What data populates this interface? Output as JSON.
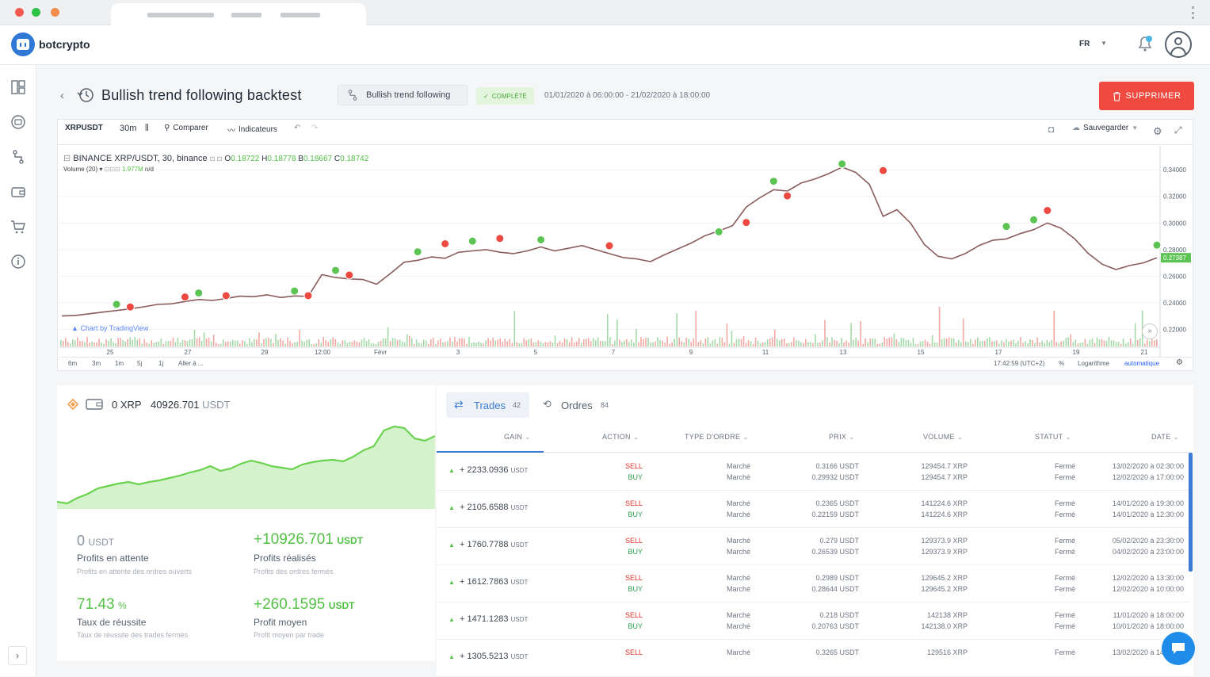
{
  "app": {
    "name": "botcrypto",
    "lang": "FR"
  },
  "page": {
    "title": "Bullish trend following backtest",
    "strategy": "Bullish trend following",
    "status": "COMPLÉTÉ",
    "range": "01/01/2020 à 06:00:00 - 21/02/2020 à 18:00:00",
    "delete_label": "SUPPRIMER"
  },
  "toolbar": {
    "symbol": "XRPUSDT",
    "interval": "30m",
    "compare": "Comparer",
    "indicators": "Indicateurs",
    "save": "Sauvegarder"
  },
  "legend": {
    "pair": "BINANCE XRP/USDT, 30, binance",
    "o_label": "O",
    "o": "0.18722",
    "h_label": "H",
    "h": "0.18778",
    "b_label": "B",
    "b": "0.18667",
    "c_label": "C",
    "c": "0.18742",
    "volume_label": "Volume (20)",
    "volume_value": "1.977M",
    "volume_na": "n/d",
    "watermark": "Chart by TradingView"
  },
  "chart_data": {
    "type": "line",
    "title": "BINANCE XRP/USDT, 30, binance",
    "x_ticks": [
      "25",
      "27",
      "29",
      "12:00",
      "Févr",
      "3",
      "5",
      "7",
      "9",
      "11",
      "13",
      "15",
      "17",
      "19",
      "21"
    ],
    "y_ticks": [
      "0.34000",
      "0.32000",
      "0.30000",
      "0.28000",
      "0.26000",
      "0.24000",
      "0.22000"
    ],
    "ylim": [
      0.212,
      0.352
    ],
    "last_price": "0.27387",
    "x": [
      0,
      1,
      2,
      3,
      4,
      5,
      6,
      7,
      8,
      9,
      10,
      11,
      12,
      13,
      14,
      15,
      16,
      17,
      18,
      19,
      20,
      21,
      22,
      23,
      24,
      25,
      26,
      27,
      28,
      29,
      30,
      31,
      32,
      33,
      34,
      35,
      36,
      37,
      38,
      39,
      40,
      41,
      42,
      43,
      44,
      45,
      46,
      47,
      48,
      49,
      50,
      51,
      52,
      53,
      54,
      55,
      56,
      57,
      58,
      59,
      60,
      61,
      62,
      63,
      64,
      65,
      66,
      67,
      68,
      69,
      70,
      71,
      72,
      73,
      74,
      75,
      76,
      77,
      78,
      79,
      80
    ],
    "y": [
      0.2301,
      0.2305,
      0.2318,
      0.233,
      0.2342,
      0.2355,
      0.237,
      0.2388,
      0.2392,
      0.241,
      0.2425,
      0.2418,
      0.2432,
      0.245,
      0.2446,
      0.246,
      0.244,
      0.2452,
      0.2448,
      0.2612,
      0.259,
      0.258,
      0.2575,
      0.254,
      0.262,
      0.2705,
      0.272,
      0.2745,
      0.2735,
      0.278,
      0.279,
      0.28,
      0.278,
      0.277,
      0.279,
      0.282,
      0.279,
      0.281,
      0.283,
      0.28,
      0.277,
      0.274,
      0.273,
      0.271,
      0.276,
      0.2805,
      0.285,
      0.2905,
      0.294,
      0.298,
      0.312,
      0.319,
      0.325,
      0.324,
      0.33,
      0.333,
      0.337,
      0.342,
      0.338,
      0.329,
      0.305,
      0.31,
      0.3,
      0.284,
      0.275,
      0.273,
      0.277,
      0.283,
      0.287,
      0.288,
      0.292,
      0.295,
      0.3,
      0.296,
      0.288,
      0.277,
      0.269,
      0.265,
      0.268,
      0.27,
      0.2739
    ],
    "buy_signals": [
      [
        4,
        0.2365
      ],
      [
        10,
        0.245
      ],
      [
        17,
        0.2465
      ],
      [
        20,
        0.262
      ],
      [
        26,
        0.276
      ],
      [
        30,
        0.284
      ],
      [
        35,
        0.285
      ],
      [
        48,
        0.291
      ],
      [
        52,
        0.329
      ],
      [
        57,
        0.342
      ],
      [
        69,
        0.295
      ],
      [
        71,
        0.3
      ],
      [
        80,
        0.281
      ]
    ],
    "sell_signals": [
      [
        5,
        0.2345
      ],
      [
        9,
        0.242
      ],
      [
        12,
        0.243
      ],
      [
        18,
        0.243
      ],
      [
        21,
        0.2585
      ],
      [
        28,
        0.282
      ],
      [
        32,
        0.286
      ],
      [
        40,
        0.2805
      ],
      [
        50,
        0.298
      ],
      [
        53,
        0.318
      ],
      [
        60,
        0.337
      ],
      [
        72,
        0.307
      ]
    ],
    "volume_scale_ticks": [
      "6m",
      "3m",
      "1m",
      "5j",
      "1j",
      "Aller à ..."
    ],
    "timestamp": "17:42:59 (UTC+2)",
    "pct": "%",
    "log": "Logarithme",
    "auto": "automatique"
  },
  "wallet": {
    "xrp": "0 XRP",
    "usdt_value": "40926.701",
    "usdt_unit": "USDT"
  },
  "equity_curve": {
    "values": [
      0.05,
      0.03,
      0.1,
      0.15,
      0.22,
      0.25,
      0.28,
      0.3,
      0.27,
      0.3,
      0.32,
      0.35,
      0.38,
      0.42,
      0.45,
      0.5,
      0.44,
      0.47,
      0.53,
      0.57,
      0.54,
      0.5,
      0.48,
      0.46,
      0.52,
      0.55,
      0.57,
      0.58,
      0.56,
      0.62,
      0.7,
      0.75,
      0.95,
      1.0,
      0.98,
      0.85,
      0.82,
      0.88
    ]
  },
  "stats": [
    {
      "value": "0",
      "unit": "USDT",
      "label": "Profits en attente",
      "sub": "Profits en attente des ordres ouverts",
      "color": "#8a93a0"
    },
    {
      "value": "+10926.701",
      "unit": "USDT",
      "label": "Profits réalisés",
      "sub": "Profits des ordres fermés",
      "color": "#53c046"
    },
    {
      "value": "71.43",
      "unit": "%",
      "label": "Taux de réussite",
      "sub": "Taux de réussite des trades fermés",
      "color": "#53c046"
    },
    {
      "value": "+260.1595",
      "unit": "USDT",
      "label": "Profit moyen",
      "sub": "Profit moyen par trade",
      "color": "#53c046"
    }
  ],
  "tabs": {
    "trades": "Trades",
    "trades_count": "42",
    "orders": "Ordres",
    "orders_count": "84"
  },
  "columns": [
    "GAIN",
    "ACTION",
    "TYPE D'ORDRE",
    "PRIX",
    "VOLUME",
    "STATUT",
    "DATE"
  ],
  "trades": [
    {
      "gain": "+ 2233.0936",
      "unit": "USDT",
      "a1": "SELL",
      "a2": "BUY",
      "t1": "Marché",
      "t2": "Marché",
      "p1": "0.3166 USDT",
      "p2": "0.29932 USDT",
      "v1": "129454.7 XRP",
      "v2": "129454.7 XRP",
      "s1": "Fermé",
      "s2": "Fermé",
      "d1": "13/02/2020 à 02:30:00",
      "d2": "12/02/2020 à 17:00:00"
    },
    {
      "gain": "+ 2105.6588",
      "unit": "USDT",
      "a1": "SELL",
      "a2": "BUY",
      "t1": "Marché",
      "t2": "Marché",
      "p1": "0.2365 USDT",
      "p2": "0.22159 USDT",
      "v1": "141224.6 XRP",
      "v2": "141224.6 XRP",
      "s1": "Fermé",
      "s2": "Fermé",
      "d1": "14/01/2020 à 19:30:00",
      "d2": "14/01/2020 à 12:30:00"
    },
    {
      "gain": "+ 1760.7788",
      "unit": "USDT",
      "a1": "SELL",
      "a2": "BUY",
      "t1": "Marché",
      "t2": "Marché",
      "p1": "0.279 USDT",
      "p2": "0.26539 USDT",
      "v1": "129373.9 XRP",
      "v2": "129373.9 XRP",
      "s1": "Fermé",
      "s2": "Fermé",
      "d1": "05/02/2020 à 23:30:00",
      "d2": "04/02/2020 à 23:00:00"
    },
    {
      "gain": "+ 1612.7863",
      "unit": "USDT",
      "a1": "SELL",
      "a2": "BUY",
      "t1": "Marché",
      "t2": "Marché",
      "p1": "0.2989 USDT",
      "p2": "0.28644 USDT",
      "v1": "129645.2 XRP",
      "v2": "129645.2 XRP",
      "s1": "Fermé",
      "s2": "Fermé",
      "d1": "12/02/2020 à 13:30:00",
      "d2": "12/02/2020 à 10:00:00"
    },
    {
      "gain": "+ 1471.1283",
      "unit": "USDT",
      "a1": "SELL",
      "a2": "BUY",
      "t1": "Marché",
      "t2": "Marché",
      "p1": "0.218 USDT",
      "p2": "0.20763 USDT",
      "v1": "142138 XRP",
      "v2": "142138.0 XRP",
      "s1": "Fermé",
      "s2": "Fermé",
      "d1": "11/01/2020 à 18:00:00",
      "d2": "10/01/2020 à 18:00:00"
    },
    {
      "gain": "+ 1305.5213",
      "unit": "USDT",
      "a1": "SELL",
      "a2": "",
      "t1": "Marché",
      "t2": "",
      "p1": "0.3265 USDT",
      "p2": "",
      "v1": "129516 XRP",
      "v2": "",
      "s1": "Fermé",
      "s2": "",
      "d1": "13/02/2020 à 14:30:00",
      "d2": ""
    }
  ]
}
